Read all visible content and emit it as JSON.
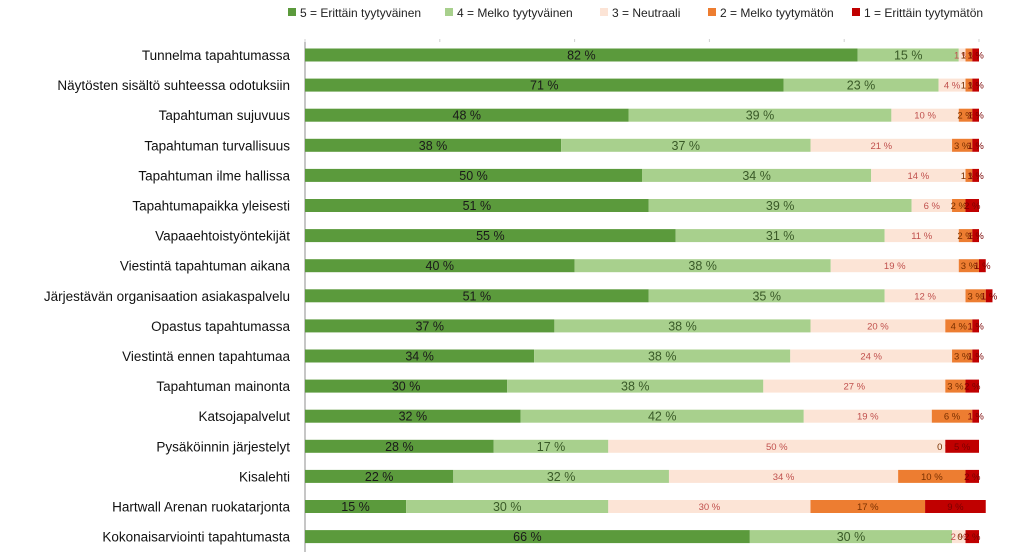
{
  "chart_data": {
    "type": "bar",
    "orientation": "horizontal",
    "stacked": true,
    "unit": "%",
    "xlim": [
      0,
      100
    ],
    "legend_position": "top-right",
    "grid": false,
    "categories": [
      "Tunnelma tapahtumassa",
      "Näytösten sisältö suhteessa odotuksiin",
      "Tapahtuman sujuvuus",
      "Tapahtuman turvallisuus",
      "Tapahtuman ilme hallissa",
      "Tapahtumapaikka yleisesti",
      "Vapaaehtoistyöntekijät",
      "Viestintä tapahtuman aikana",
      "Järjestävän organisaation asiakaspalvelu",
      "Opastus tapahtumassa",
      "Viestintä ennen tapahtumaa",
      "Tapahtuman mainonta",
      "Katsojapalvelut",
      "Pysäköinnin järjestelyt",
      "Kisalehti",
      "Hartwall Arenan ruokatarjonta",
      "Kokonaisarviointi tapahtumasta"
    ],
    "series": [
      {
        "name": "5 = Erittäin tyytyväinen",
        "color": "#5b9a3c",
        "values": [
          82,
          71,
          48,
          38,
          50,
          51,
          55,
          40,
          51,
          37,
          34,
          30,
          32,
          28,
          22,
          15,
          66
        ]
      },
      {
        "name": "4 = Melko tyytyväinen",
        "color": "#a8d08d",
        "values": [
          15,
          23,
          39,
          37,
          34,
          39,
          31,
          38,
          35,
          38,
          38,
          38,
          42,
          17,
          32,
          30,
          30
        ]
      },
      {
        "name": "3 = Neutraali",
        "color": "#fce4d6",
        "values": [
          1,
          4,
          10,
          21,
          14,
          6,
          11,
          19,
          12,
          20,
          24,
          27,
          19,
          50,
          34,
          30,
          2
        ]
      },
      {
        "name": "2 = Melko tyytymätön",
        "color": "#ed7d31",
        "values": [
          1,
          1,
          2,
          3,
          1,
          2,
          2,
          3,
          3,
          4,
          3,
          3,
          6,
          0,
          10,
          17,
          0
        ]
      },
      {
        "name": "1 = Erittäin tyytymätön",
        "color": "#c00000",
        "values": [
          1,
          1,
          1,
          1,
          1,
          2,
          1,
          1,
          1,
          1,
          1,
          2,
          1,
          5,
          2,
          9,
          2
        ]
      }
    ],
    "label_colors": [
      "#1a1a1a",
      "#3a5a28",
      "#c0504d",
      "#7a3000",
      "#7a0000"
    ]
  }
}
